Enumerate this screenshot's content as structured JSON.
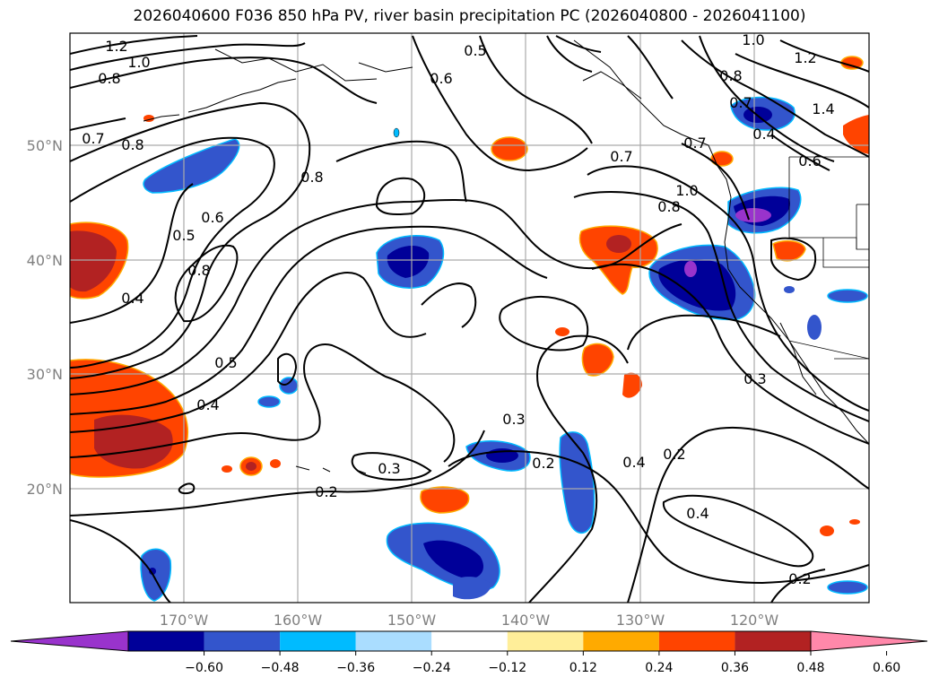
{
  "title": "2026040600 F036 850 hPa PV, river basin precipitation PC (2026040800 - 2026041100)",
  "lat_labels": [
    "50°N",
    "40°N",
    "30°N",
    "20°N"
  ],
  "lon_labels": [
    "170°W",
    "160°W",
    "150°W",
    "140°W",
    "130°W",
    "120°W"
  ],
  "contour_labels": [
    "1.2",
    "1.0",
    "0.8",
    "0.7",
    "0.8",
    "0.5",
    "0.6",
    "0.6",
    "0.5",
    "0.8",
    "0.4",
    "0.8",
    "0.5",
    "0.4",
    "0.3",
    "0.2",
    "0.3",
    "0.2",
    "0.4",
    "0.2",
    "0.4",
    "0.2",
    "0.3",
    "0.7",
    "1.0",
    "0.8",
    "1.2",
    "1.4",
    "1.0",
    "0.8",
    "0.4",
    "0.6",
    "0.7",
    "0.7"
  ],
  "colorbar": {
    "colors": [
      "#9933cc",
      "#000099",
      "#3355cc",
      "#00bbff",
      "#aaddff",
      "#ffffff",
      "#ffee99",
      "#ffaa00",
      "#ff4400",
      "#b22222",
      "#ff88aa"
    ],
    "labels": [
      "−0.60",
      "−0.48",
      "−0.36",
      "−0.24",
      "−0.12",
      "0.12",
      "0.24",
      "0.36",
      "0.48",
      "0.60"
    ]
  },
  "legend_colors": {
    "land_outline": "#000000",
    "grid": "#aaaaaa",
    "contour": "#000000"
  }
}
